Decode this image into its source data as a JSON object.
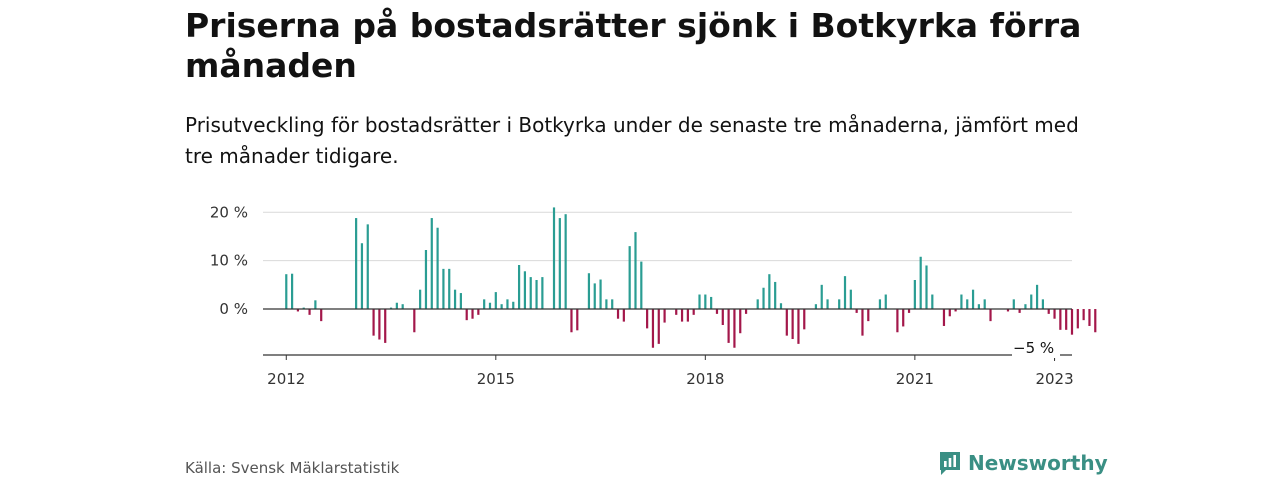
{
  "title": "Priserna på bostadsrätter sjönk i Botkyrka förra månaden",
  "subtitle": "Prisutveckling för bostadsrätter i Botkyrka under de senaste tre månaderna, jämfört med tre månader tidigare.",
  "source": "Källa: Svensk Mäklarstatistik",
  "brand": {
    "name": "Newsworthy",
    "icon": "chat-bar-chart-icon",
    "color": "#3a8f84"
  },
  "colors": {
    "positive": "#2a9d93",
    "negative": "#a3174a",
    "grid": "#d9d9d9",
    "axis": "#333333"
  },
  "chart_data": {
    "type": "bar",
    "title": "",
    "xlabel": "",
    "ylabel": "",
    "x_start": "2012-01",
    "x_end": "2023-01",
    "xlim": [
      "2011-09",
      "2023-04"
    ],
    "ylim": [
      -9.5,
      21.5
    ],
    "y_ticks": [
      {
        "value": 20,
        "label": "20 %"
      },
      {
        "value": 10,
        "label": "10 %"
      },
      {
        "value": 0,
        "label": "0 %"
      }
    ],
    "x_ticks": [
      {
        "value": "2012-01",
        "label": "2012"
      },
      {
        "value": "2015-01",
        "label": "2015"
      },
      {
        "value": "2018-01",
        "label": "2018"
      },
      {
        "value": "2021-01",
        "label": "2021"
      },
      {
        "value": "2023-01",
        "label": "2023"
      }
    ],
    "grid": true,
    "annotation": {
      "x": "2023-01",
      "value": -5,
      "label": "−5 %"
    },
    "values": [
      7.2,
      7.3,
      -0.5,
      0.3,
      -1.2,
      1.8,
      -2.5,
      0,
      0,
      0,
      0,
      0,
      18.8,
      13.6,
      17.5,
      -5.5,
      -6.3,
      -7.0,
      0.3,
      1.3,
      1.0,
      0,
      -4.8,
      4.0,
      12.2,
      18.8,
      16.8,
      8.3,
      8.3,
      4.0,
      3.3,
      -2.3,
      -2.0,
      -1.2,
      2.0,
      1.3,
      3.5,
      1.0,
      2.0,
      1.5,
      9.1,
      7.8,
      6.6,
      6.0,
      6.6,
      0,
      21.0,
      18.8,
      19.6,
      -4.8,
      -4.4,
      0,
      7.4,
      5.3,
      6.1,
      2.0,
      2.0,
      -2.0,
      -2.6,
      13.0,
      15.9,
      9.8,
      -4.0,
      -8.0,
      -7.2,
      -2.8,
      0,
      -1.2,
      -2.6,
      -2.6,
      -1.2,
      3.0,
      3.0,
      2.5,
      -1.0,
      -3.3,
      -7.0,
      -8.0,
      -5.0,
      -1.0,
      0,
      2.0,
      4.4,
      7.2,
      5.6,
      1.2,
      -5.5,
      -6.2,
      -7.2,
      -4.2,
      0,
      1.0,
      5.0,
      2.0,
      0,
      2.0,
      6.8,
      4.0,
      -0.8,
      -5.5,
      -2.5,
      0,
      2.0,
      3.0,
      0,
      -4.8,
      -3.6,
      -0.8,
      6.0,
      10.8,
      9.0,
      3.0,
      0,
      -3.5,
      -1.5,
      -0.5,
      3.0,
      2.0,
      4.0,
      1.0,
      2.0,
      -2.5,
      0,
      0,
      -0.5,
      2.0,
      -0.8,
      1.0,
      3.0,
      5.0,
      2.0,
      -1.0,
      -2.0,
      -4.3,
      -4.3,
      -5.3,
      -4.0,
      -2.3,
      -3.5,
      -4.8
    ]
  }
}
